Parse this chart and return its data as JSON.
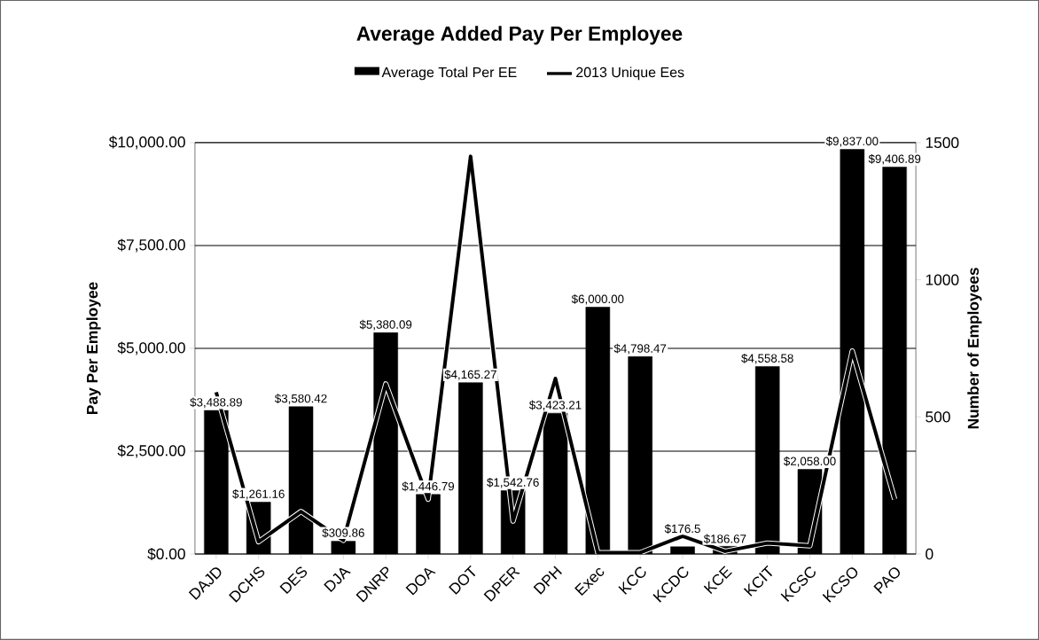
{
  "chart_data": {
    "type": "bar",
    "title": "Average Added Pay Per Employee",
    "ylabel": "Pay Per Employee",
    "y2label": "Number of Employees",
    "categories": [
      "DAJD",
      "DCHS",
      "DES",
      "DJA",
      "DNRP",
      "DOA",
      "DOT",
      "DPER",
      "DPH",
      "Exec",
      "KCC",
      "KCDC",
      "KCE",
      "KCIT",
      "KCSC",
      "KCSO",
      "PAO"
    ],
    "series": [
      {
        "name": "Average Total Per EE",
        "color": "#000000",
        "values": [
          3488.89,
          1261.16,
          3580.42,
          309.86,
          5380.09,
          1446.79,
          4165.27,
          1542.76,
          3423.21,
          6000.0,
          4798.47,
          176.5,
          186.67,
          4558.58,
          2058.0,
          9837.0,
          9406.89
        ],
        "value_labels": [
          "$3,488.89",
          "$1,261.16",
          "$3,580.42",
          "$309.86",
          "$5,380.09",
          "$1,446.79",
          "$4,165.27",
          "$1,542.76",
          "$3,423.21",
          "$6,000.00",
          "$4,798.47",
          "$176.5",
          "$186.67",
          "$4,558.58",
          "$2,058.00",
          "$9,837.00",
          "$9,406.89"
        ]
      },
      {
        "name": "2013 Unique Ees",
        "type": "line",
        "axis": "y2",
        "color": "#000000",
        "values": [
          590,
          45,
          155,
          50,
          620,
          200,
          1450,
          120,
          640,
          5,
          5,
          65,
          10,
          40,
          30,
          740,
          200
        ]
      }
    ],
    "ylim": [
      0,
      10000
    ],
    "yticks": [
      {
        "value": 0,
        "label": "$0.00"
      },
      {
        "value": 2500,
        "label": "$2,500.00"
      },
      {
        "value": 5000,
        "label": "$5,000.00"
      },
      {
        "value": 7500,
        "label": "$7,500.00"
      },
      {
        "value": 10000,
        "label": "$10,000.00"
      }
    ],
    "y2lim": [
      0,
      1500
    ],
    "y2ticks": [
      0,
      500,
      1000,
      1500
    ],
    "grid": "y",
    "legend": "top"
  }
}
